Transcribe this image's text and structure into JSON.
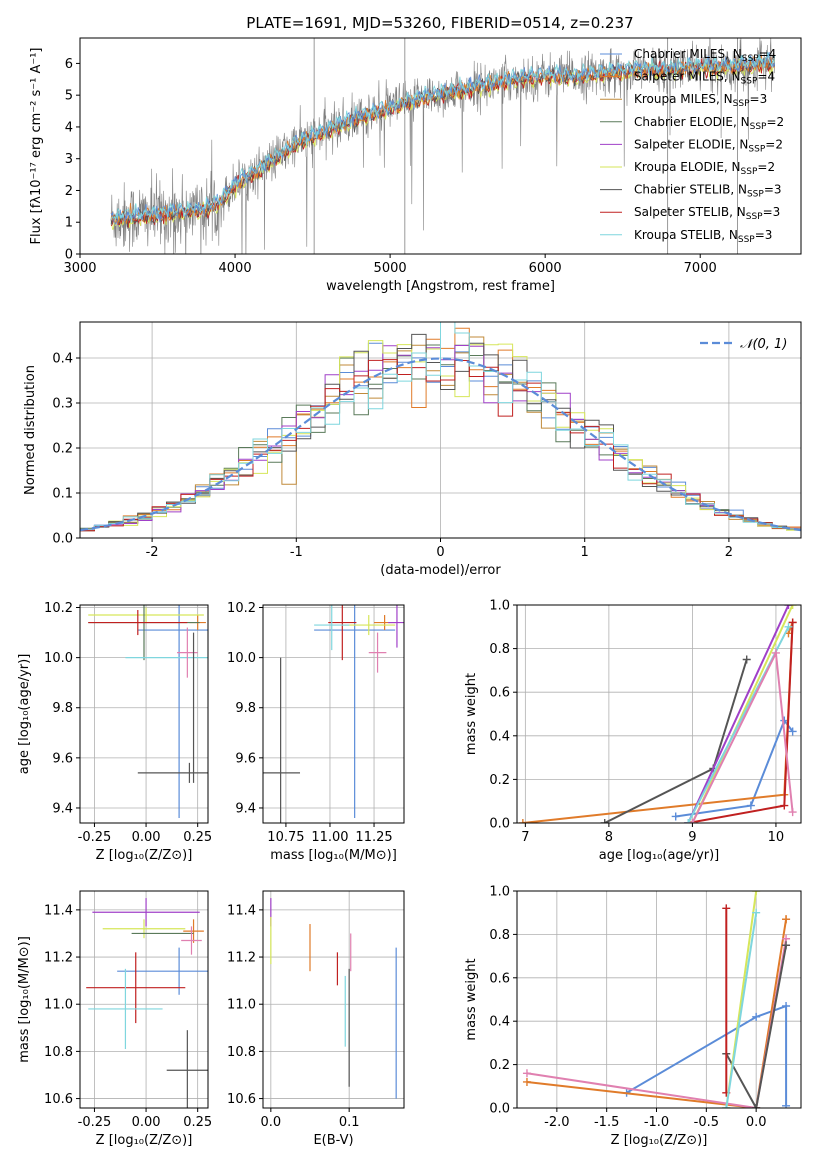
{
  "title": "PLATE=1691, MJD=53260, FIBERID=0514, z=0.237",
  "colors": {
    "chabrier_miles": "#5b8cd8",
    "salpeter_miles": "#e07b2a",
    "kroupa_miles": "#c08a3a",
    "chabrier_elodie": "#5a7a5a",
    "salpeter_elodie": "#a040c8",
    "kroupa_elodie": "#d6e65a",
    "chabrier_stelib": "#555555",
    "salpeter_stelib": "#c02020",
    "kroupa_stelib": "#7fd6de",
    "pink": "#e080b0",
    "spectrum_gray": "#808080"
  },
  "chart_data": [
    {
      "id": "spectrum",
      "type": "line",
      "title": "PLATE=1691, MJD=53260, FIBERID=0514, z=0.237",
      "xlabel": "wavelength [Angstrom, rest frame]",
      "ylabel": "Flux [fλ10⁻¹⁷ erg cm⁻² s⁻¹ A⁻¹]",
      "xlim": [
        3000,
        7650
      ],
      "ylim": [
        0,
        6.8
      ],
      "xticks": [
        3000,
        4000,
        5000,
        6000,
        7000
      ],
      "yticks": [
        0,
        1,
        2,
        3,
        4,
        5,
        6
      ],
      "continuum": {
        "x": [
          3200,
          3400,
          3600,
          3800,
          3900,
          4000,
          4200,
          4400,
          4600,
          4800,
          5000,
          5200,
          5400,
          5600,
          5800,
          6000,
          6200,
          6400,
          6600,
          6800,
          7000,
          7200,
          7400
        ],
        "y": [
          1.1,
          1.2,
          1.3,
          1.4,
          1.6,
          2.2,
          2.8,
          3.5,
          3.9,
          4.3,
          4.6,
          4.9,
          5.1,
          5.3,
          5.5,
          5.6,
          5.6,
          5.7,
          5.8,
          5.8,
          5.9,
          5.9,
          6.0
        ]
      },
      "legend": [
        {
          "label": "Chabrier MILES, N",
          "sub": "SSP",
          "suffix": "=4",
          "color": "chabrier_miles"
        },
        {
          "label": "Salpeter MILES, N",
          "sub": "SSP",
          "suffix": "=4",
          "color": "salpeter_miles"
        },
        {
          "label": "Kroupa MILES, N",
          "sub": "SSP",
          "suffix": "=3",
          "color": "kroupa_miles"
        },
        {
          "label": "Chabrier ELODIE, N",
          "sub": "SSP",
          "suffix": "=2",
          "color": "chabrier_elodie"
        },
        {
          "label": "Salpeter ELODIE, N",
          "sub": "SSP",
          "suffix": "=2",
          "color": "salpeter_elodie"
        },
        {
          "label": "Kroupa ELODIE, N",
          "sub": "SSP",
          "suffix": "=2",
          "color": "kroupa_elodie"
        },
        {
          "label": "Chabrier STELIB, N",
          "sub": "SSP",
          "suffix": "=3",
          "color": "chabrier_stelib"
        },
        {
          "label": "Salpeter STELIB, N",
          "sub": "SSP",
          "suffix": "=3",
          "color": "salpeter_stelib"
        },
        {
          "label": "Kroupa STELIB, N",
          "sub": "SSP",
          "suffix": "=3",
          "color": "kroupa_stelib"
        }
      ]
    },
    {
      "id": "residuals",
      "type": "line",
      "xlabel": "(data-model)/error",
      "ylabel": "Normed distribution",
      "xlim": [
        -2.5,
        2.5
      ],
      "ylim": [
        0,
        0.48
      ],
      "xticks": [
        -2,
        -1,
        0,
        1,
        2
      ],
      "yticks": [
        0.0,
        0.1,
        0.2,
        0.3,
        0.4
      ],
      "legend_label": "𝒩(0, 1)",
      "grid": true
    },
    {
      "id": "age_vs_Z",
      "type": "scatter",
      "xlabel": "Z [log₁₀(Z/Z⊙)]",
      "ylabel": "age  [log₁₀(age/yr)]",
      "xlim": [
        -0.32,
        0.3
      ],
      "ylim": [
        9.34,
        10.21
      ],
      "xticks": [
        -0.25,
        0.0,
        0.25
      ],
      "yticks": [
        9.4,
        9.6,
        9.8,
        10.0,
        10.2
      ],
      "points": [
        {
          "x": 0.16,
          "y": 10.11,
          "xerr": 0.2,
          "yerr": 0.75,
          "color": "chabrier_miles"
        },
        {
          "x": 0.25,
          "y": 10.14,
          "xerr": 0.04,
          "yerr": 0.03,
          "color": "salpeter_miles"
        },
        {
          "x": 0.0,
          "y": 10.17,
          "xerr": 0.28,
          "yerr": 0.03,
          "color": "kroupa_elodie"
        },
        {
          "x": -0.01,
          "y": 10.14,
          "xerr": 0.27,
          "yerr": 0.15,
          "color": "chabrier_elodie"
        },
        {
          "x": 0.21,
          "y": 9.54,
          "xerr": 0.25,
          "yerr": 0.04,
          "color": "chabrier_stelib"
        },
        {
          "x": -0.04,
          "y": 10.14,
          "xerr": 0.24,
          "yerr": 0.05,
          "color": "salpeter_stelib"
        },
        {
          "x": 0.1,
          "y": 10.0,
          "xerr": 0.2,
          "yerr": 0.0,
          "color": "kroupa_stelib"
        },
        {
          "x": 0.2,
          "y": 10.02,
          "xerr": 0.05,
          "yerr": 0.1,
          "color": "pink"
        },
        {
          "x": 0.23,
          "y": 9.8,
          "xerr": 0.0,
          "yerr": 0.3,
          "color": "chabrier_stelib"
        }
      ]
    },
    {
      "id": "age_vs_mass",
      "type": "scatter",
      "xlabel": "mass [log₁₀(M/M⊙)]",
      "xlim": [
        10.62,
        11.42
      ],
      "ylim": [
        9.34,
        10.21
      ],
      "xticks": [
        10.75,
        11.0,
        11.25
      ],
      "yticks": [
        9.4,
        9.6,
        9.8,
        10.0,
        10.2
      ],
      "points": [
        {
          "x": 11.14,
          "y": 10.11,
          "xerr": 0.23,
          "yerr": 0.75,
          "color": "chabrier_miles"
        },
        {
          "x": 11.31,
          "y": 10.14,
          "xerr": 0.06,
          "yerr": 0.03,
          "color": "salpeter_miles"
        },
        {
          "x": 11.38,
          "y": 10.14,
          "xerr": 0.05,
          "yerr": 0.1,
          "color": "salpeter_elodie"
        },
        {
          "x": 11.22,
          "y": 10.13,
          "xerr": 0.15,
          "yerr": 0.04,
          "color": "kroupa_elodie"
        },
        {
          "x": 10.72,
          "y": 9.54,
          "xerr": 0.11,
          "yerr": 0.46,
          "color": "chabrier_stelib"
        },
        {
          "x": 11.07,
          "y": 10.14,
          "xerr": 0.08,
          "yerr": 0.15,
          "color": "salpeter_stelib"
        },
        {
          "x": 11.01,
          "y": 10.13,
          "xerr": 0.1,
          "yerr": 0.1,
          "color": "kroupa_stelib"
        },
        {
          "x": 11.27,
          "y": 10.02,
          "xerr": 0.05,
          "yerr": 0.08,
          "color": "pink"
        }
      ]
    },
    {
      "id": "massweight_vs_age",
      "type": "line",
      "xlabel": "age  [log₁₀(age/yr)]",
      "ylabel": "mass weight",
      "xlim": [
        6.9,
        10.3
      ],
      "ylim": [
        0,
        1.0
      ],
      "xticks": [
        7,
        8,
        9,
        10
      ],
      "yticks": [
        0.0,
        0.2,
        0.4,
        0.6,
        0.8,
        1.0
      ],
      "series": [
        {
          "color": "chabrier_miles",
          "x": [
            8.8,
            9.7,
            10.1,
            10.2
          ],
          "y": [
            0.03,
            0.08,
            0.47,
            0.42
          ]
        },
        {
          "color": "salpeter_miles",
          "x": [
            6.97,
            10.1,
            10.2,
            10.15
          ],
          "y": [
            0.0,
            0.13,
            0.92,
            0.87
          ]
        },
        {
          "color": "chabrier_stelib",
          "x": [
            7.95,
            9.25,
            9.65
          ],
          "y": [
            0.0,
            0.25,
            0.75
          ]
        },
        {
          "color": "salpeter_stelib",
          "x": [
            8.95,
            10.1,
            10.2
          ],
          "y": [
            0.0,
            0.08,
            0.92
          ]
        },
        {
          "color": "kroupa_elodie",
          "x": [
            9.0,
            10.2
          ],
          "y": [
            0.0,
            1.0
          ]
        },
        {
          "color": "salpeter_elodie",
          "x": [
            8.95,
            10.15
          ],
          "y": [
            0.0,
            1.0
          ]
        },
        {
          "color": "kroupa_stelib",
          "x": [
            8.95,
            10.15
          ],
          "y": [
            0.0,
            0.9
          ]
        },
        {
          "color": "pink",
          "x": [
            9.0,
            10.0,
            10.2
          ],
          "y": [
            0.0,
            0.78,
            0.05
          ]
        }
      ]
    },
    {
      "id": "mass_vs_Z",
      "type": "scatter",
      "xlabel": "Z [log₁₀(Z/Z⊙)]",
      "ylabel": "mass [log₁₀(M/M⊙)]",
      "xlim": [
        -0.32,
        0.3
      ],
      "ylim": [
        10.56,
        11.48
      ],
      "xticks": [
        -0.25,
        0.0,
        0.25
      ],
      "yticks": [
        10.6,
        10.8,
        11.0,
        11.2,
        11.4
      ],
      "points": [
        {
          "x": 0.0,
          "y": 11.39,
          "xerr": 0.26,
          "yerr": 0.06,
          "color": "salpeter_elodie"
        },
        {
          "x": 0.23,
          "y": 11.31,
          "xerr": 0.05,
          "yerr": 0.05,
          "color": "salpeter_miles"
        },
        {
          "x": -0.01,
          "y": 11.32,
          "xerr": 0.2,
          "yerr": 0.04,
          "color": "kroupa_elodie"
        },
        {
          "x": 0.08,
          "y": 11.3,
          "xerr": 0.15,
          "yerr": 0.0,
          "color": "chabrier_elodie"
        },
        {
          "x": 0.22,
          "y": 11.27,
          "xerr": 0.05,
          "yerr": 0.06,
          "color": "pink"
        },
        {
          "x": 0.16,
          "y": 11.14,
          "xerr": 0.3,
          "yerr": 0.1,
          "color": "chabrier_miles"
        },
        {
          "x": -0.05,
          "y": 11.07,
          "xerr": 0.24,
          "yerr": 0.15,
          "color": "salpeter_stelib"
        },
        {
          "x": -0.1,
          "y": 10.98,
          "xerr": 0.18,
          "yerr": 0.17,
          "color": "kroupa_stelib"
        },
        {
          "x": 0.2,
          "y": 10.72,
          "xerr": 0.1,
          "yerr": 0.17,
          "color": "chabrier_stelib"
        }
      ]
    },
    {
      "id": "mass_vs_ebv",
      "type": "scatter",
      "xlabel": "E(B-V)",
      "xlim": [
        -0.01,
        0.17
      ],
      "ylim": [
        10.56,
        11.48
      ],
      "xticks": [
        0.0,
        0.1
      ],
      "yticks": [
        10.6,
        10.8,
        11.0,
        11.2,
        11.4
      ],
      "points": [
        {
          "x": 0.0,
          "y": 11.39,
          "yerr": 0.06,
          "color": "salpeter_elodie"
        },
        {
          "x": 0.0,
          "y": 11.27,
          "yerr": 0.1,
          "color": "kroupa_elodie"
        },
        {
          "x": 0.05,
          "y": 11.24,
          "yerr": 0.1,
          "color": "salpeter_miles"
        },
        {
          "x": 0.085,
          "y": 11.15,
          "yerr": 0.07,
          "color": "salpeter_stelib"
        },
        {
          "x": 0.095,
          "y": 10.97,
          "yerr": 0.15,
          "color": "kroupa_stelib"
        },
        {
          "x": 0.1,
          "y": 10.9,
          "yerr": 0.25,
          "color": "chabrier_stelib"
        },
        {
          "x": 0.102,
          "y": 11.22,
          "yerr": 0.08,
          "color": "pink"
        },
        {
          "x": 0.16,
          "y": 10.92,
          "yerr": 0.32,
          "color": "chabrier_miles"
        }
      ]
    },
    {
      "id": "massweight_vs_Z",
      "type": "line",
      "xlabel": "Z [log₁₀(Z/Z⊙)]",
      "ylabel": "mass weight",
      "xlim": [
        -2.4,
        0.45
      ],
      "ylim": [
        0,
        1.0
      ],
      "xticks": [
        -2.0,
        -1.5,
        -1.0,
        -0.5,
        0.0
      ],
      "yticks": [
        0.0,
        0.2,
        0.4,
        0.6,
        0.8,
        1.0
      ],
      "series": [
        {
          "color": "chabrier_miles",
          "x": [
            -1.3,
            0.0,
            0.3,
            0.3
          ],
          "y": [
            0.07,
            0.42,
            0.47,
            0.01
          ]
        },
        {
          "color": "salpeter_miles",
          "x": [
            -2.3,
            0.0,
            0.3,
            0.3
          ],
          "y": [
            0.12,
            0.0,
            0.87,
            0.87
          ]
        },
        {
          "color": "pink",
          "x": [
            -2.3,
            0.0,
            0.3
          ],
          "y": [
            0.16,
            0.0,
            0.78
          ]
        },
        {
          "color": "chabrier_stelib",
          "x": [
            -0.3,
            0.0,
            0.3
          ],
          "y": [
            0.25,
            0.0,
            0.75
          ]
        },
        {
          "color": "salpeter_stelib",
          "x": [
            -0.3,
            -0.3
          ],
          "y": [
            0.07,
            0.92
          ]
        },
        {
          "color": "kroupa_elodie",
          "x": [
            -0.3,
            0.0
          ],
          "y": [
            0.0,
            1.0
          ]
        },
        {
          "color": "kroupa_stelib",
          "x": [
            -0.3,
            0.0
          ],
          "y": [
            0.0,
            0.9
          ]
        }
      ]
    }
  ]
}
